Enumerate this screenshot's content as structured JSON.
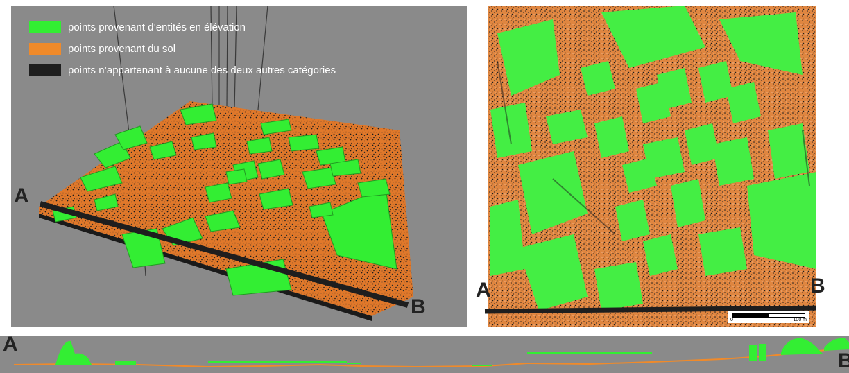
{
  "legend": [
    {
      "color": "#33ee33",
      "label": "points provenant d’entités en élévation"
    },
    {
      "color": "#f08a2a",
      "label": "points provenant du sol"
    },
    {
      "color": "#1e1e1e",
      "label": "points n’appartenant à aucune des deux autres catégories"
    }
  ],
  "section_labels": {
    "start": "A",
    "end": "B"
  },
  "scale": {
    "zero": "0",
    "end": "100 m"
  },
  "colors": {
    "elevation": "#33ee33",
    "ground": "#f08a2a",
    "other": "#1e1e1e",
    "background": "#8a8a8a"
  }
}
